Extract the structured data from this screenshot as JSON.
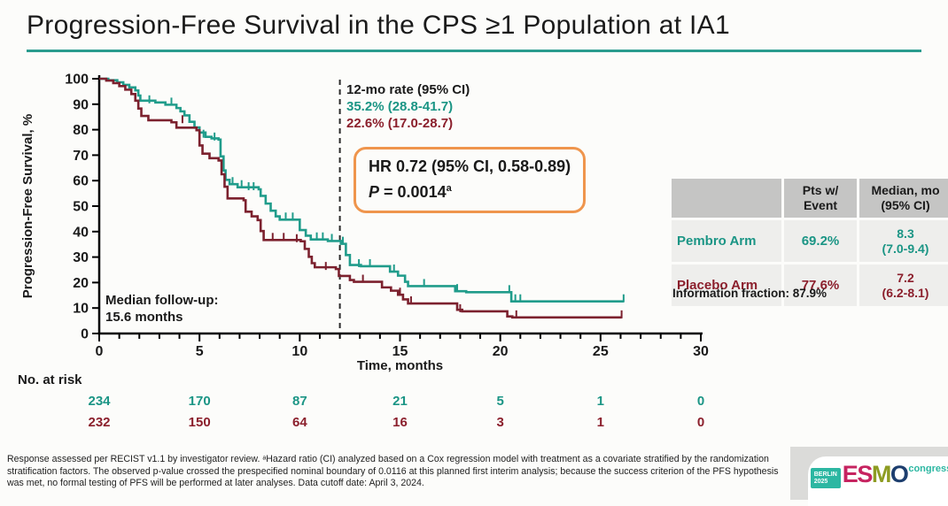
{
  "slide": {
    "title": "Progression-Free Survival in the CPS ≥1 Population at IA1"
  },
  "colors": {
    "teal_line": "#209c8b",
    "teal_text": "#1b9585",
    "red_line": "#7c212e",
    "red_text": "#8b1f2c",
    "title_underline": "#2a9c8e",
    "hr_box_border": "#ef954d",
    "table_header_bg": "#c5c5c4",
    "table_row_bg": "#eeeeec",
    "logo_teal": "#2cb7a2"
  },
  "chart_data": {
    "type": "line",
    "subtype": "kaplan-meier-step",
    "xlabel": "Time, months",
    "ylabel": "Progression-Free Survival, %",
    "xlim": [
      0,
      30
    ],
    "ylim": [
      0,
      100
    ],
    "xticks_major": [
      0,
      5,
      10,
      15,
      20,
      25,
      30
    ],
    "xticks_minor_step": 1,
    "yticks": [
      0,
      10,
      20,
      30,
      40,
      50,
      60,
      70,
      80,
      90,
      100
    ],
    "grid": false,
    "reference_line_x": 12,
    "series": [
      {
        "name": "Pembro Arm",
        "color": "#209c8b",
        "points": [
          [
            0,
            100
          ],
          [
            0.45,
            99.4
          ],
          [
            0.9,
            98.6
          ],
          [
            1.2,
            97.6
          ],
          [
            1.5,
            96.6
          ],
          [
            1.8,
            95.4
          ],
          [
            1.95,
            93.4
          ],
          [
            2.05,
            91.4
          ],
          [
            2.8,
            90.7
          ],
          [
            3.3,
            89.8
          ],
          [
            3.85,
            88.5
          ],
          [
            4.05,
            87.2
          ],
          [
            4.25,
            85.6
          ],
          [
            4.5,
            83.1
          ],
          [
            4.75,
            80.9
          ],
          [
            5.0,
            78.9
          ],
          [
            5.3,
            77.2
          ],
          [
            5.6,
            76.6
          ],
          [
            5.95,
            76.1
          ],
          [
            6.05,
            69.5
          ],
          [
            6.2,
            64.0
          ],
          [
            6.3,
            60.3
          ],
          [
            6.5,
            58.6
          ],
          [
            6.9,
            57.4
          ],
          [
            7.95,
            56.6
          ],
          [
            8.05,
            54.0
          ],
          [
            8.3,
            51.0
          ],
          [
            8.55,
            48.2
          ],
          [
            8.8,
            46.0
          ],
          [
            9.0,
            44.7
          ],
          [
            10.0,
            40.6
          ],
          [
            10.3,
            38.4
          ],
          [
            10.55,
            36.9
          ],
          [
            11.4,
            36.3
          ],
          [
            12.05,
            35.2
          ],
          [
            12.3,
            30.8
          ],
          [
            12.5,
            26.9
          ],
          [
            13.05,
            26.4
          ],
          [
            14.5,
            24.3
          ],
          [
            14.9,
            22.7
          ],
          [
            15.25,
            20.3
          ],
          [
            15.4,
            18.6
          ],
          [
            17.75,
            16.6
          ],
          [
            18.3,
            16.2
          ],
          [
            20.55,
            12.6
          ],
          [
            26.15,
            12.6
          ]
        ],
        "censor_marks": [
          [
            2.5,
            90.7
          ],
          [
            3.6,
            89.8
          ],
          [
            5.2,
            77.2
          ],
          [
            5.75,
            76.1
          ],
          [
            6.65,
            58.6
          ],
          [
            7.1,
            57.4
          ],
          [
            7.45,
            56.6
          ],
          [
            7.7,
            56.6
          ],
          [
            9.3,
            44.7
          ],
          [
            9.65,
            44.7
          ],
          [
            10.85,
            36.9
          ],
          [
            11.15,
            36.9
          ],
          [
            11.6,
            36.3
          ],
          [
            12.15,
            35.2
          ],
          [
            12.95,
            26.4
          ],
          [
            13.5,
            26.4
          ],
          [
            14.7,
            24.3
          ],
          [
            16.2,
            18.6
          ],
          [
            17.85,
            16.6
          ],
          [
            20.45,
            16.2
          ],
          [
            20.75,
            12.6
          ],
          [
            21.0,
            12.6
          ],
          [
            26.15,
            12.6
          ]
        ]
      },
      {
        "name": "Placebo Arm",
        "color": "#7c212e",
        "points": [
          [
            0,
            100
          ],
          [
            0.35,
            99.3
          ],
          [
            0.7,
            98.3
          ],
          [
            1.0,
            97.1
          ],
          [
            1.3,
            95.7
          ],
          [
            1.6,
            94.0
          ],
          [
            1.8,
            91.4
          ],
          [
            1.95,
            88.3
          ],
          [
            2.1,
            85.4
          ],
          [
            2.45,
            83.7
          ],
          [
            3.6,
            82.9
          ],
          [
            3.85,
            80.8
          ],
          [
            4.85,
            79.8
          ],
          [
            5.0,
            73.8
          ],
          [
            5.15,
            70.6
          ],
          [
            5.5,
            68.8
          ],
          [
            5.95,
            67.9
          ],
          [
            6.1,
            62.5
          ],
          [
            6.25,
            57.6
          ],
          [
            6.4,
            53.0
          ],
          [
            7.2,
            52.3
          ],
          [
            7.3,
            47.8
          ],
          [
            7.6,
            46.0
          ],
          [
            7.9,
            44.5
          ],
          [
            8.05,
            40.2
          ],
          [
            8.2,
            36.7
          ],
          [
            10.05,
            36.2
          ],
          [
            10.25,
            33.2
          ],
          [
            10.45,
            30.1
          ],
          [
            10.6,
            27.6
          ],
          [
            10.75,
            26.0
          ],
          [
            11.8,
            25.3
          ],
          [
            11.95,
            22.6
          ],
          [
            12.5,
            21.0
          ],
          [
            12.7,
            20.3
          ],
          [
            14.1,
            18.1
          ],
          [
            14.55,
            16.8
          ],
          [
            14.9,
            15.2
          ],
          [
            15.15,
            13.4
          ],
          [
            15.4,
            11.8
          ],
          [
            17.85,
            9.3
          ],
          [
            18.1,
            8.7
          ],
          [
            20.35,
            6.7
          ],
          [
            20.6,
            6.3
          ],
          [
            26.05,
            6.3
          ]
        ],
        "censor_marks": [
          [
            4.15,
            82.9
          ],
          [
            8.65,
            36.7
          ],
          [
            9.2,
            36.7
          ],
          [
            9.85,
            36.2
          ],
          [
            11.3,
            25.3
          ],
          [
            13.15,
            20.3
          ],
          [
            15.0,
            15.2
          ],
          [
            15.55,
            11.8
          ],
          [
            18.0,
            8.7
          ],
          [
            20.8,
            6.3
          ],
          [
            26.05,
            6.3
          ]
        ]
      }
    ],
    "at_risk": {
      "label": "No. at risk",
      "times": [
        0,
        5,
        10,
        15,
        20,
        25,
        30
      ],
      "rows": [
        {
          "name": "Pembro",
          "color": "#1b9585",
          "values": [
            234,
            170,
            87,
            21,
            5,
            1,
            0
          ]
        },
        {
          "name": "Placebo",
          "color": "#8b1f2c",
          "values": [
            232,
            150,
            64,
            16,
            3,
            1,
            0
          ]
        }
      ]
    }
  },
  "rate_annotation": {
    "title": "12-mo rate (95% CI)",
    "pembro": "35.2% (28.8-41.7)",
    "placebo": "22.6% (17.0-28.7)"
  },
  "hr_box": {
    "line1": "HR 0.72 (95% CI, 0.58-0.89)",
    "p_italic": "P",
    "p_text": " = 0.0014",
    "p_sup": "a"
  },
  "median_followup": {
    "line1": "Median follow-up:",
    "line2": "15.6 months"
  },
  "summary_table": {
    "col_event_header_l1": "Pts w/",
    "col_event_header_l2": "Event",
    "col_median_header_l1": "Median, mo",
    "col_median_header_l2": "(95% CI)",
    "rows": [
      {
        "label": "Pembro Arm",
        "event": "69.2%",
        "median_l1": "8.3",
        "median_l2": "(7.0-9.4)",
        "color": "#1b9585"
      },
      {
        "label": "Placebo Arm",
        "event": "77.6%",
        "median_l1": "7.2",
        "median_l2": "(6.2-8.1)",
        "color": "#8b1f2c"
      }
    ]
  },
  "information_fraction": "Information fraction: 87.9%",
  "footnote": "Response assessed per RECIST v1.1 by investigator review. ᵃHazard ratio (CI) analyzed based on a Cox regression model with treatment as a covariate stratified by the randomization stratification factors. The observed p-value crossed the prespecified nominal boundary of 0.0116 at this planned first interim analysis; because the success criterion of the PFS hypothesis was met, no formal testing of PFS will be performed at later analyses. Data cutoff date: April 3, 2024.",
  "logo": {
    "badge_l1": "BERLIN",
    "badge_l2": "2025",
    "letters": [
      {
        "ch": "E",
        "color": "#c62360"
      },
      {
        "ch": "S",
        "color": "#c62360"
      },
      {
        "ch": "M",
        "color": "#8d9c22"
      },
      {
        "ch": "O",
        "color": "#1d3e6e"
      }
    ],
    "congress": "congress"
  }
}
